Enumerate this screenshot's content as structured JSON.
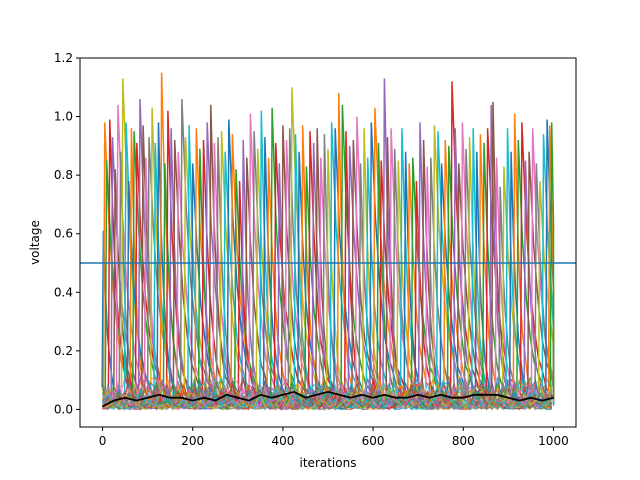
{
  "chart_data": {
    "type": "line",
    "title": "",
    "xlabel": "iterations",
    "ylabel": "voltage",
    "xlim": [
      -50,
      1050
    ],
    "ylim": [
      -0.06,
      1.2
    ],
    "xticks": [
      0,
      200,
      400,
      600,
      800,
      1000
    ],
    "yticks": [
      0.0,
      0.2,
      0.4,
      0.6,
      0.8,
      1.0,
      1.2
    ],
    "ytick_labels": [
      "0.0",
      "0.2",
      "0.4",
      "0.6",
      "0.8",
      "1.0",
      "1.2"
    ],
    "grid": false,
    "legend": "none",
    "threshold": {
      "y": 0.5,
      "color": "#1f77b4"
    },
    "mean_series": {
      "color": "#000000",
      "x": [
        0,
        25,
        50,
        75,
        100,
        125,
        150,
        175,
        200,
        225,
        250,
        275,
        300,
        325,
        350,
        375,
        400,
        425,
        450,
        475,
        500,
        525,
        550,
        575,
        600,
        625,
        650,
        675,
        700,
        725,
        750,
        775,
        800,
        825,
        850,
        875,
        900,
        925,
        950,
        975,
        1000
      ],
      "y": [
        0.01,
        0.03,
        0.04,
        0.03,
        0.04,
        0.05,
        0.04,
        0.04,
        0.03,
        0.04,
        0.03,
        0.05,
        0.04,
        0.03,
        0.05,
        0.04,
        0.05,
        0.06,
        0.04,
        0.05,
        0.06,
        0.05,
        0.04,
        0.05,
        0.04,
        0.05,
        0.04,
        0.04,
        0.05,
        0.04,
        0.05,
        0.04,
        0.04,
        0.05,
        0.05,
        0.05,
        0.04,
        0.03,
        0.04,
        0.03,
        0.04
      ]
    },
    "series_colors": [
      "#1f77b4",
      "#ff7f0e",
      "#2ca02c",
      "#d62728",
      "#9467bd",
      "#8c564b",
      "#e377c2",
      "#7f7f7f",
      "#bcbd22",
      "#17becf"
    ],
    "spikes": [
      {
        "x": 2,
        "peak": 0.61
      },
      {
        "x": 5,
        "peak": 0.98
      },
      {
        "x": 9,
        "peak": 0.85
      },
      {
        "x": 16,
        "peak": 0.99
      },
      {
        "x": 22,
        "peak": 0.93
      },
      {
        "x": 28,
        "peak": 0.82
      },
      {
        "x": 34,
        "peak": 1.04
      },
      {
        "x": 40,
        "peak": 0.88
      },
      {
        "x": 45,
        "peak": 1.13
      },
      {
        "x": 52,
        "peak": 0.98
      },
      {
        "x": 58,
        "peak": 0.78
      },
      {
        "x": 64,
        "peak": 0.96
      },
      {
        "x": 70,
        "peak": 0.95
      },
      {
        "x": 76,
        "peak": 0.91
      },
      {
        "x": 83,
        "peak": 1.06
      },
      {
        "x": 90,
        "peak": 0.97
      },
      {
        "x": 96,
        "peak": 0.86
      },
      {
        "x": 103,
        "peak": 0.93
      },
      {
        "x": 110,
        "peak": 1.03
      },
      {
        "x": 117,
        "peak": 0.91
      },
      {
        "x": 124,
        "peak": 0.98
      },
      {
        "x": 131,
        "peak": 1.15
      },
      {
        "x": 138,
        "peak": 0.84
      },
      {
        "x": 145,
        "peak": 1.02
      },
      {
        "x": 152,
        "peak": 0.96
      },
      {
        "x": 160,
        "peak": 0.92
      },
      {
        "x": 168,
        "peak": 0.88
      },
      {
        "x": 176,
        "peak": 1.06
      },
      {
        "x": 184,
        "peak": 0.93
      },
      {
        "x": 192,
        "peak": 0.97
      },
      {
        "x": 200,
        "peak": 0.84
      },
      {
        "x": 208,
        "peak": 0.96
      },
      {
        "x": 216,
        "peak": 0.89
      },
      {
        "x": 224,
        "peak": 0.92
      },
      {
        "x": 232,
        "peak": 0.98
      },
      {
        "x": 240,
        "peak": 1.04
      },
      {
        "x": 248,
        "peak": 0.91
      },
      {
        "x": 256,
        "peak": 0.93
      },
      {
        "x": 264,
        "peak": 0.95
      },
      {
        "x": 272,
        "peak": 0.88
      },
      {
        "x": 280,
        "peak": 0.99
      },
      {
        "x": 288,
        "peak": 0.94
      },
      {
        "x": 296,
        "peak": 0.82
      },
      {
        "x": 304,
        "peak": 0.78
      },
      {
        "x": 312,
        "peak": 0.92
      },
      {
        "x": 320,
        "peak": 0.86
      },
      {
        "x": 328,
        "peak": 1.01
      },
      {
        "x": 336,
        "peak": 0.95
      },
      {
        "x": 344,
        "peak": 0.89
      },
      {
        "x": 352,
        "peak": 1.02
      },
      {
        "x": 360,
        "peak": 0.93
      },
      {
        "x": 368,
        "peak": 0.86
      },
      {
        "x": 376,
        "peak": 1.03
      },
      {
        "x": 384,
        "peak": 0.91
      },
      {
        "x": 392,
        "peak": 0.84
      },
      {
        "x": 400,
        "peak": 0.97
      },
      {
        "x": 408,
        "peak": 0.92
      },
      {
        "x": 415,
        "peak": 0.96
      },
      {
        "x": 420,
        "peak": 1.1
      },
      {
        "x": 428,
        "peak": 0.94
      },
      {
        "x": 436,
        "peak": 0.88
      },
      {
        "x": 444,
        "peak": 0.97
      },
      {
        "x": 452,
        "peak": 0.83
      },
      {
        "x": 460,
        "peak": 0.95
      },
      {
        "x": 468,
        "peak": 0.91
      },
      {
        "x": 476,
        "peak": 0.96
      },
      {
        "x": 484,
        "peak": 0.86
      },
      {
        "x": 492,
        "peak": 0.94
      },
      {
        "x": 500,
        "peak": 0.89
      },
      {
        "x": 508,
        "peak": 0.98
      },
      {
        "x": 516,
        "peak": 0.96
      },
      {
        "x": 524,
        "peak": 1.08
      },
      {
        "x": 532,
        "peak": 1.04
      },
      {
        "x": 540,
        "peak": 0.95
      },
      {
        "x": 548,
        "peak": 0.9
      },
      {
        "x": 556,
        "peak": 0.92
      },
      {
        "x": 564,
        "peak": 1.0
      },
      {
        "x": 572,
        "peak": 0.84
      },
      {
        "x": 580,
        "peak": 0.96
      },
      {
        "x": 588,
        "peak": 0.86
      },
      {
        "x": 596,
        "peak": 0.98
      },
      {
        "x": 604,
        "peak": 1.03
      },
      {
        "x": 612,
        "peak": 0.91
      },
      {
        "x": 618,
        "peak": 0.85
      },
      {
        "x": 625,
        "peak": 1.13
      },
      {
        "x": 632,
        "peak": 0.93
      },
      {
        "x": 640,
        "peak": 0.96
      },
      {
        "x": 648,
        "peak": 0.89
      },
      {
        "x": 656,
        "peak": 0.85
      },
      {
        "x": 664,
        "peak": 0.96
      },
      {
        "x": 672,
        "peak": 0.88
      },
      {
        "x": 680,
        "peak": 0.84
      },
      {
        "x": 688,
        "peak": 0.86
      },
      {
        "x": 696,
        "peak": 0.78
      },
      {
        "x": 704,
        "peak": 0.98
      },
      {
        "x": 712,
        "peak": 0.92
      },
      {
        "x": 720,
        "peak": 0.83
      },
      {
        "x": 728,
        "peak": 0.86
      },
      {
        "x": 736,
        "peak": 0.97
      },
      {
        "x": 744,
        "peak": 0.95
      },
      {
        "x": 752,
        "peak": 0.84
      },
      {
        "x": 760,
        "peak": 0.92
      },
      {
        "x": 768,
        "peak": 0.9
      },
      {
        "x": 775,
        "peak": 1.12
      },
      {
        "x": 782,
        "peak": 0.96
      },
      {
        "x": 790,
        "peak": 0.84
      },
      {
        "x": 798,
        "peak": 0.98
      },
      {
        "x": 806,
        "peak": 0.89
      },
      {
        "x": 814,
        "peak": 0.93
      },
      {
        "x": 822,
        "peak": 0.96
      },
      {
        "x": 830,
        "peak": 0.88
      },
      {
        "x": 838,
        "peak": 0.94
      },
      {
        "x": 846,
        "peak": 0.91
      },
      {
        "x": 854,
        "peak": 0.96
      },
      {
        "x": 862,
        "peak": 1.04
      },
      {
        "x": 866,
        "peak": 1.05
      },
      {
        "x": 874,
        "peak": 0.86
      },
      {
        "x": 882,
        "peak": 0.76
      },
      {
        "x": 890,
        "peak": 0.83
      },
      {
        "x": 898,
        "peak": 0.96
      },
      {
        "x": 906,
        "peak": 0.88
      },
      {
        "x": 914,
        "peak": 1.01
      },
      {
        "x": 922,
        "peak": 0.92
      },
      {
        "x": 930,
        "peak": 0.98
      },
      {
        "x": 938,
        "peak": 0.85
      },
      {
        "x": 946,
        "peak": 0.88
      },
      {
        "x": 954,
        "peak": 0.96
      },
      {
        "x": 962,
        "peak": 0.84
      },
      {
        "x": 970,
        "peak": 0.78
      },
      {
        "x": 978,
        "peak": 0.94
      },
      {
        "x": 986,
        "peak": 0.99
      },
      {
        "x": 992,
        "peak": 0.97
      },
      {
        "x": 996,
        "peak": 0.98
      }
    ]
  }
}
